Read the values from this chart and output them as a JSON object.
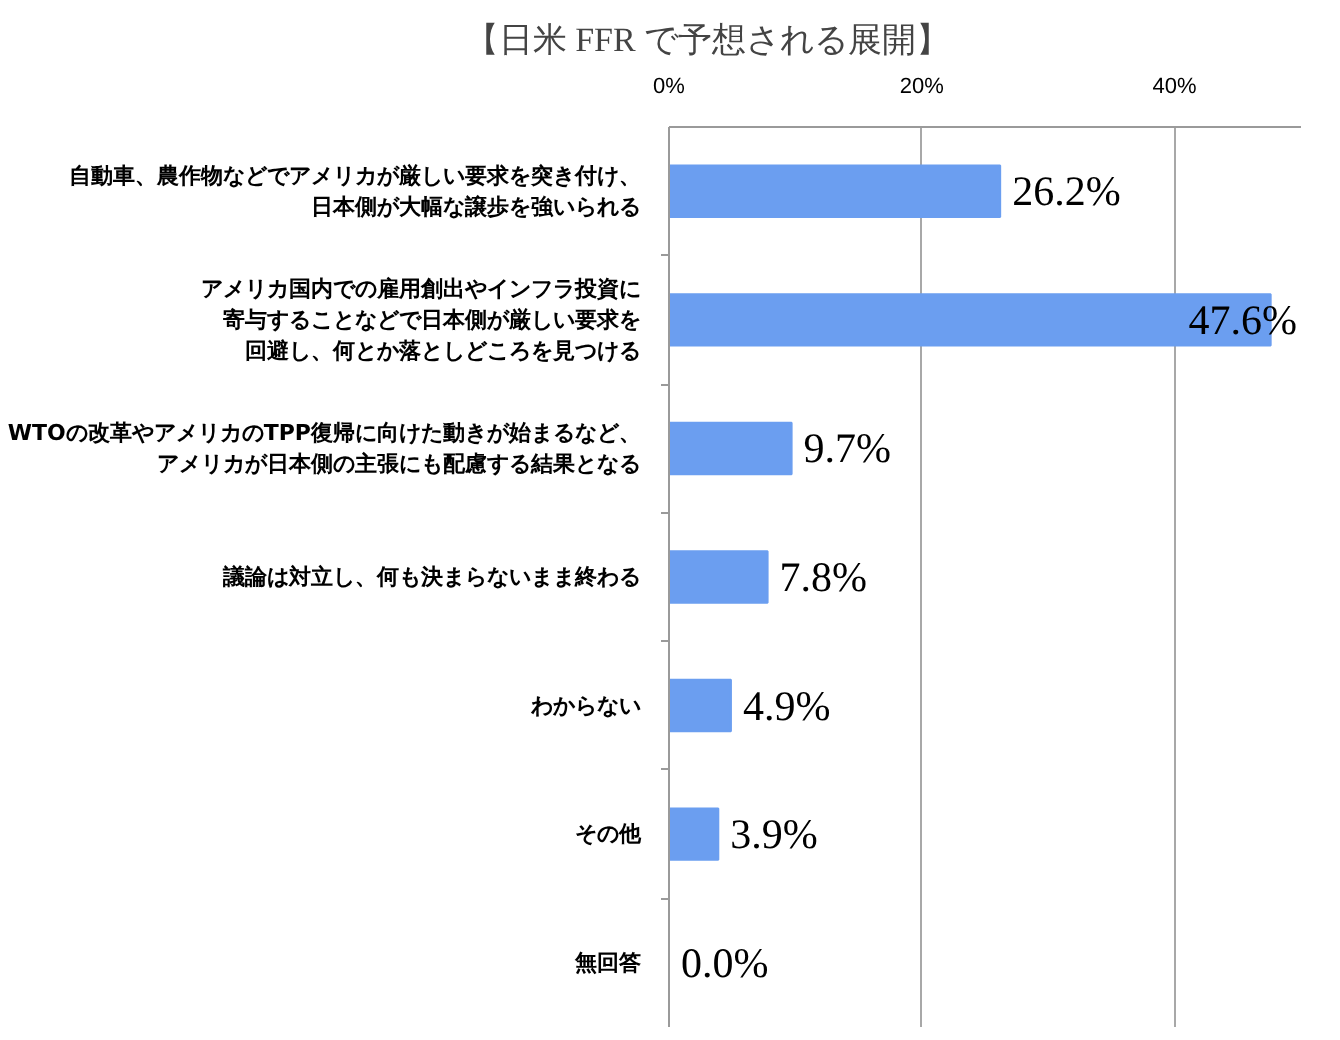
{
  "chart_data": {
    "type": "bar",
    "orientation": "horizontal",
    "title": "【日米 FFR で予想される展開】",
    "categories": [
      "自動車、農作物などでアメリカが厳しい要求を突き付け、日本側が大幅な譲歩を強いられる",
      "アメリカ国内での雇用創出やインフラ投資に寄与することなどで日本側が厳しい要求を回避し、何とか落としどころを見つける",
      "WTOの改革やアメリカのTPP復帰に向けた動きが始まるなど、アメリカが日本側の主張にも配慮する結果となる",
      "議論は対立し、何も決まらないまま終わる",
      "わからない",
      "その他",
      "無回答"
    ],
    "values": [
      26.2,
      47.6,
      9.7,
      7.8,
      4.9,
      3.9,
      0.0
    ],
    "color": "#6b9ef0",
    "value_labels": [
      "26.2%",
      "47.6%",
      "9.7%",
      "7.8%",
      "4.9%",
      "3.9%",
      "0.0%"
    ],
    "xlim": [
      0,
      50
    ],
    "xticks": [
      {
        "value": 0,
        "label": "0%"
      },
      {
        "value": 20,
        "label": "20%"
      },
      {
        "value": 40,
        "label": "40%"
      }
    ],
    "grid": "x"
  }
}
